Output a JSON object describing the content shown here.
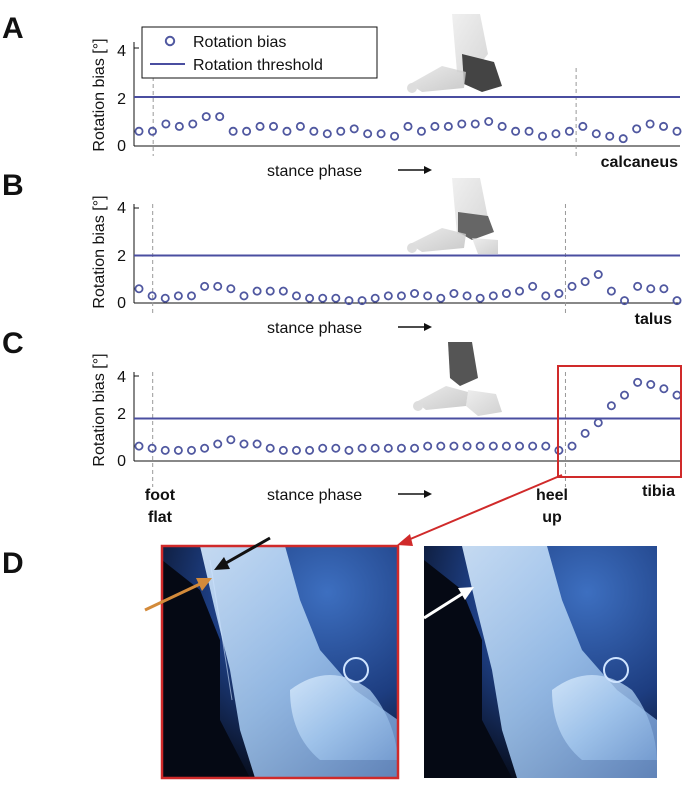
{
  "colors": {
    "marker": "#5058a0",
    "threshold": "#4a4ea0",
    "highlight_box": "#d02a2a",
    "axis": "#111111",
    "phase_line": "#999999",
    "arrow_orange": "#d38a3a",
    "arrow_black": "#111111",
    "arrow_white": "#ffffff"
  },
  "legend": {
    "marker_label": "Rotation bias",
    "line_label": "Rotation threshold"
  },
  "phase_labels": {
    "stance": "stance phase",
    "foot_flat_1": "foot",
    "foot_flat_2": "flat",
    "heel_up_1": "heel",
    "heel_up_2": "up"
  },
  "panels": [
    {
      "letter": "A",
      "bone": "calcaneus",
      "ylabel": "Rotation bias [°]",
      "yticks": [
        "0",
        "2",
        "4"
      ]
    },
    {
      "letter": "B",
      "bone": "talus",
      "ylabel": "Rotation bias [°]",
      "yticks": [
        "0",
        "2",
        "4"
      ]
    },
    {
      "letter": "C",
      "bone": "tibia",
      "ylabel": "Rotation bias [°]",
      "yticks": [
        "0",
        "2",
        "4"
      ]
    }
  ],
  "panel_d_letter": "D",
  "chart_data": [
    {
      "type": "scatter",
      "title": "",
      "ylabel": "Rotation bias [°]",
      "xlabel": "stance phase",
      "bone": "calcaneus",
      "ylim": [
        0,
        4.5
      ],
      "threshold": 2,
      "foot_flat_index": 1.5,
      "heel_up_index": 32.5,
      "series": [
        {
          "name": "Rotation bias",
          "values": [
            0.6,
            0.6,
            0.9,
            0.8,
            0.9,
            1.2,
            1.2,
            0.6,
            0.6,
            0.8,
            0.8,
            0.6,
            0.8,
            0.6,
            0.5,
            0.6,
            0.7,
            0.5,
            0.5,
            0.4,
            0.8,
            0.6,
            0.8,
            0.8,
            0.9,
            0.9,
            1.0,
            0.8,
            0.6,
            0.6,
            0.4,
            0.5,
            0.6,
            0.8,
            0.5,
            0.4,
            0.3,
            0.7,
            0.9,
            0.8,
            0.6
          ]
        }
      ]
    },
    {
      "type": "scatter",
      "title": "",
      "ylabel": "Rotation bias [°]",
      "xlabel": "stance phase",
      "bone": "talus",
      "ylim": [
        0,
        4.5
      ],
      "threshold": 2,
      "foot_flat_index": 1.5,
      "heel_up_index": 32.5,
      "series": [
        {
          "name": "Rotation bias",
          "values": [
            0.6,
            0.3,
            0.2,
            0.3,
            0.3,
            0.7,
            0.7,
            0.6,
            0.3,
            0.5,
            0.5,
            0.5,
            0.3,
            0.2,
            0.2,
            0.2,
            0.1,
            0.1,
            0.2,
            0.3,
            0.3,
            0.4,
            0.3,
            0.2,
            0.4,
            0.3,
            0.2,
            0.3,
            0.4,
            0.5,
            0.7,
            0.3,
            0.4,
            0.7,
            0.9,
            1.2,
            0.5,
            0.1,
            0.7,
            0.6,
            0.6,
            0.1
          ]
        }
      ]
    },
    {
      "type": "scatter",
      "title": "",
      "ylabel": "Rotation bias [°]",
      "xlabel": "stance phase",
      "bone": "tibia",
      "ylim": [
        0,
        4.5
      ],
      "threshold": 2,
      "foot_flat_index": 1.5,
      "heel_up_index": 32.5,
      "series": [
        {
          "name": "Rotation bias",
          "values": [
            0.7,
            0.6,
            0.5,
            0.5,
            0.5,
            0.6,
            0.8,
            1.0,
            0.8,
            0.8,
            0.6,
            0.5,
            0.5,
            0.5,
            0.6,
            0.6,
            0.5,
            0.6,
            0.6,
            0.6,
            0.6,
            0.6,
            0.7,
            0.7,
            0.7,
            0.7,
            0.7,
            0.7,
            0.7,
            0.7,
            0.7,
            0.7,
            0.5,
            0.7,
            1.3,
            1.8,
            2.6,
            3.1,
            3.7,
            3.6,
            3.4,
            3.1
          ]
        }
      ]
    }
  ]
}
